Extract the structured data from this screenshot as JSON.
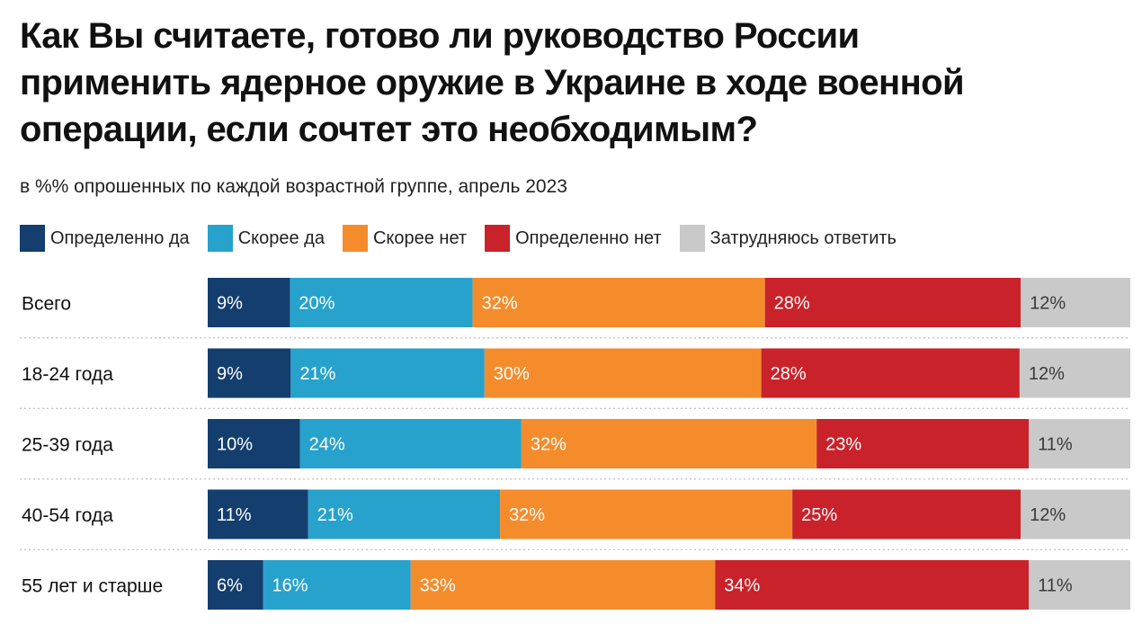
{
  "chart_data": {
    "type": "bar",
    "orientation": "horizontal",
    "stacked": true,
    "normalized": true,
    "title": "Как Вы считаете, готово ли руководство России\nприменить ядерное оружие в Украине в ходе военной\nоперации, если сочтет это необходимым?",
    "subtitle": "в %% опрошенных по каждой возрастной группе, апрель 2023",
    "legend_position": "top",
    "categories": [
      "Всего",
      "18-24 года",
      "25-39 года",
      "40-54 года",
      "55 лет и старше"
    ],
    "series": [
      {
        "name": "Определенно да",
        "color": "#133e6e",
        "values": [
          9,
          9,
          10,
          11,
          6
        ]
      },
      {
        "name": "Скорее да",
        "color": "#27a2cc",
        "values": [
          20,
          21,
          24,
          21,
          16
        ]
      },
      {
        "name": "Скорее нет",
        "color": "#f48c2c",
        "values": [
          32,
          30,
          32,
          32,
          33
        ]
      },
      {
        "name": "Определенно нет",
        "color": "#c9222a",
        "values": [
          28,
          28,
          23,
          25,
          34
        ]
      },
      {
        "name": "Затрудняюсь ответить",
        "color": "#c9c9c9",
        "values": [
          12,
          12,
          11,
          12,
          11
        ]
      }
    ],
    "value_suffix": "%"
  }
}
